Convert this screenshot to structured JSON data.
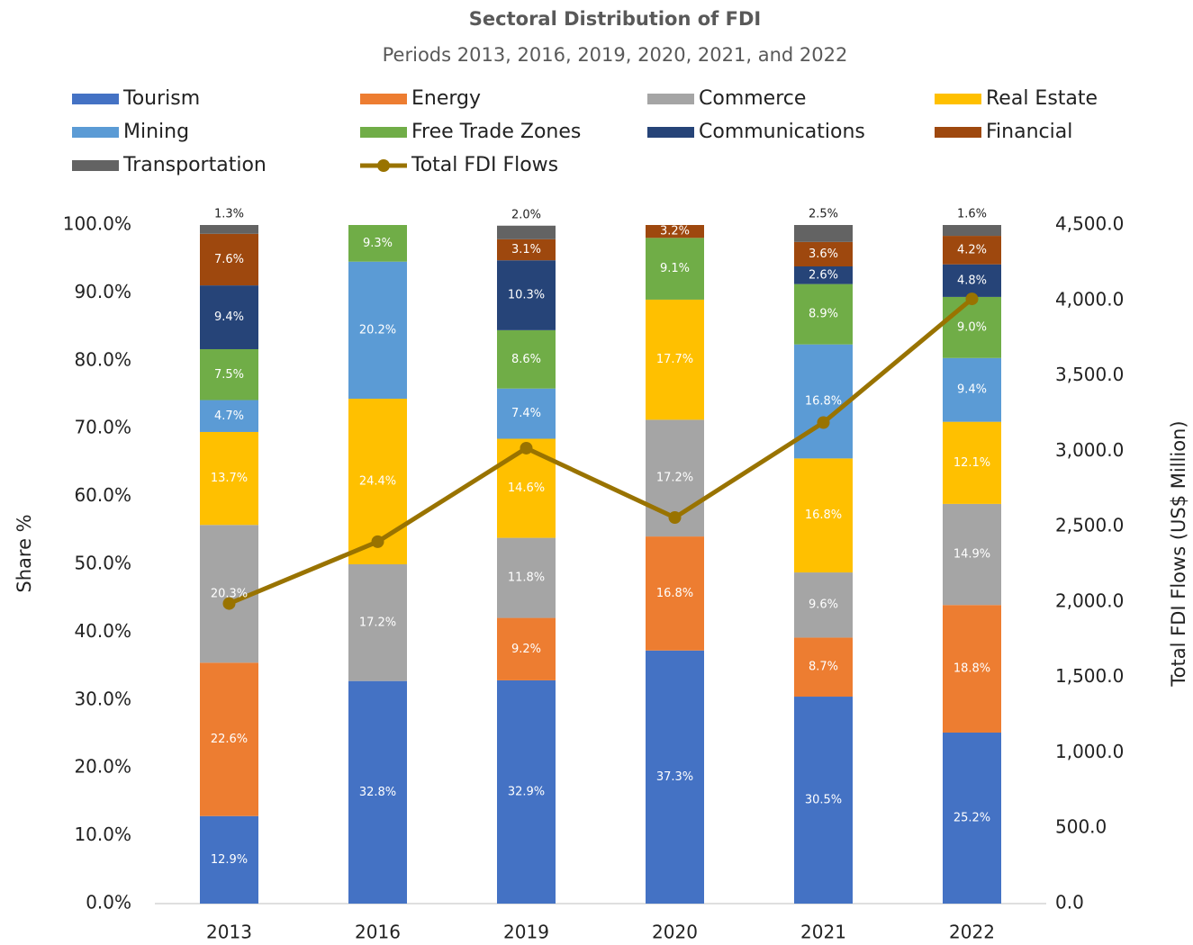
{
  "chart_data": {
    "type": "stacked-bar-line",
    "title": "Sectoral Distribution of FDI",
    "subtitle": "Periods 2013, 2016, 2019, 2020, 2021, and 2022",
    "y_label": "Share %",
    "y2_label": "Total FDI Flows (US$ Million)",
    "categories": [
      "2013",
      "2016",
      "2019",
      "2020",
      "2021",
      "2022"
    ],
    "ylim": [
      0,
      100
    ],
    "yticks": [
      {
        "value": 0,
        "label": "0.0%"
      },
      {
        "value": 10,
        "label": "10.0%"
      },
      {
        "value": 20,
        "label": "20.0%"
      },
      {
        "value": 30,
        "label": "30.0%"
      },
      {
        "value": 40,
        "label": "40.0%"
      },
      {
        "value": 50,
        "label": "50.0%"
      },
      {
        "value": 60,
        "label": "60.0%"
      },
      {
        "value": 70,
        "label": "70.0%"
      },
      {
        "value": 80,
        "label": "80.0%"
      },
      {
        "value": 90,
        "label": "90.0%"
      },
      {
        "value": 100,
        "label": "100.0%"
      }
    ],
    "y2lim": [
      0,
      4500
    ],
    "y2ticks": [
      {
        "value": 0,
        "label": "0.0"
      },
      {
        "value": 500,
        "label": "500.0"
      },
      {
        "value": 1000,
        "label": "1,000.0"
      },
      {
        "value": 1500,
        "label": "1,500.0"
      },
      {
        "value": 2000,
        "label": "2,000.0"
      },
      {
        "value": 2500,
        "label": "2,500.0"
      },
      {
        "value": 3000,
        "label": "3,000.0"
      },
      {
        "value": 3500,
        "label": "3,500.0"
      },
      {
        "value": 4000,
        "label": "4,000.0"
      },
      {
        "value": 4500,
        "label": "4,500.0"
      }
    ],
    "series": [
      {
        "name": "Tourism",
        "color": "#4472c4",
        "values": [
          12.9,
          32.8,
          32.9,
          37.3,
          30.5,
          25.2
        ],
        "value_labels": [
          "12.9%",
          "32.8%",
          "32.9%",
          "37.3%",
          "30.5%",
          "25.2%"
        ]
      },
      {
        "name": "Energy",
        "color": "#ed7d31",
        "values": [
          22.6,
          null,
          9.2,
          16.8,
          8.7,
          18.8
        ],
        "value_labels": [
          "22.6%",
          null,
          "9.2%",
          "16.8%",
          "8.7%",
          "18.8%"
        ]
      },
      {
        "name": "Commerce",
        "color": "#a5a5a5",
        "values": [
          20.3,
          17.2,
          11.8,
          17.2,
          9.6,
          14.9
        ],
        "value_labels": [
          "20.3%",
          "17.2%",
          "11.8%",
          "17.2%",
          "9.6%",
          "14.9%"
        ]
      },
      {
        "name": "Real Estate",
        "color": "#ffc000",
        "values": [
          13.7,
          24.4,
          14.6,
          17.7,
          16.8,
          12.1
        ],
        "value_labels": [
          "13.7%",
          "24.4%",
          "14.6%",
          "17.7%",
          "16.8%",
          "12.1%"
        ]
      },
      {
        "name": "Mining",
        "color": "#5b9bd5",
        "values": [
          4.7,
          20.2,
          7.4,
          null,
          16.8,
          9.4
        ],
        "value_labels": [
          "4.7%",
          "20.2%",
          "7.4%",
          null,
          "16.8%",
          "9.4%"
        ]
      },
      {
        "name": "Free Trade Zones",
        "color": "#70ad47",
        "values": [
          7.5,
          9.3,
          8.6,
          9.1,
          8.9,
          9.0
        ],
        "value_labels": [
          "7.5%",
          "9.3%",
          "8.6%",
          "9.1%",
          "8.9%",
          "9.0%"
        ]
      },
      {
        "name": "Communications",
        "color": "#264478",
        "values": [
          9.4,
          null,
          10.3,
          null,
          2.6,
          4.8
        ],
        "value_labels": [
          "9.4%",
          null,
          "10.3%",
          null,
          "2.6%",
          "4.8%"
        ]
      },
      {
        "name": "Financial",
        "color": "#9e480e",
        "values": [
          7.6,
          null,
          3.1,
          3.2,
          3.6,
          4.2
        ],
        "value_labels": [
          "7.6%",
          null,
          "3.1%",
          "3.2%",
          "3.6%",
          "4.2%"
        ]
      },
      {
        "name": "Transportation",
        "color": "#636363",
        "values": [
          1.3,
          null,
          2.0,
          null,
          2.5,
          1.6
        ],
        "value_labels": [
          "1.3%",
          null,
          "2.0%",
          null,
          "2.5%",
          "1.6%"
        ]
      },
      {
        "name": "Total FDI Flows",
        "color": "#997300",
        "axis": "y2",
        "type": "line",
        "values": [
          1990,
          2400,
          3020,
          2560,
          3190,
          4010
        ]
      }
    ]
  }
}
